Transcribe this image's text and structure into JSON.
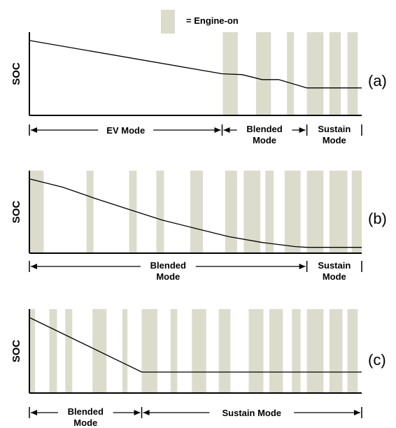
{
  "legend": {
    "label": "= Engine-on",
    "color": "#dcdccc"
  },
  "colors": {
    "band": "#dcdccc",
    "axis": "#000000",
    "curve": "#000000"
  },
  "panels": [
    {
      "tag": "(a)",
      "ylabel": "SOC",
      "bands": [
        [
          0.582,
          0.627
        ],
        [
          0.682,
          0.727
        ],
        [
          0.775,
          0.796
        ],
        [
          0.835,
          0.885
        ],
        [
          0.903,
          0.937
        ],
        [
          0.957,
          0.988
        ]
      ],
      "curve": [
        [
          0,
          0.9
        ],
        [
          0.58,
          0.5
        ],
        [
          0.64,
          0.49
        ],
        [
          0.7,
          0.43
        ],
        [
          0.75,
          0.43
        ],
        [
          0.835,
          0.33
        ],
        [
          1,
          0.33
        ]
      ],
      "modes": [
        {
          "label": "EV Mode",
          "start": 0,
          "end": 0.58
        },
        {
          "label": "Blended\nMode",
          "start": 0.58,
          "end": 0.835
        },
        {
          "label": "Sustain\nMode",
          "start": 0.835,
          "end": 1
        }
      ]
    },
    {
      "tag": "(b)",
      "ylabel": "SOC",
      "bands": [
        [
          0,
          0.043
        ],
        [
          0.172,
          0.193
        ],
        [
          0.3,
          0.323
        ],
        [
          0.382,
          0.405
        ],
        [
          0.484,
          0.522
        ],
        [
          0.589,
          0.625
        ],
        [
          0.645,
          0.695
        ],
        [
          0.71,
          0.735
        ],
        [
          0.768,
          0.816
        ],
        [
          0.835,
          0.885
        ],
        [
          0.903,
          0.957
        ],
        [
          0.97,
          1.0
        ]
      ],
      "curve": [
        [
          0,
          0.9
        ],
        [
          0.1,
          0.8
        ],
        [
          0.2,
          0.66
        ],
        [
          0.3,
          0.53
        ],
        [
          0.4,
          0.4
        ],
        [
          0.5,
          0.3
        ],
        [
          0.6,
          0.2
        ],
        [
          0.7,
          0.13
        ],
        [
          0.8,
          0.08
        ],
        [
          0.835,
          0.07
        ],
        [
          1,
          0.07
        ]
      ],
      "modes": [
        {
          "label": "Blended\nMode",
          "start": 0,
          "end": 0.835
        },
        {
          "label": "Sustain\nMode",
          "start": 0.835,
          "end": 1
        }
      ]
    },
    {
      "tag": "(c)",
      "ylabel": "SOC",
      "bands": [
        [
          0,
          0.017
        ],
        [
          0.06,
          0.083
        ],
        [
          0.108,
          0.129
        ],
        [
          0.19,
          0.232
        ],
        [
          0.28,
          0.295
        ],
        [
          0.338,
          0.385
        ],
        [
          0.425,
          0.445
        ],
        [
          0.489,
          0.532
        ],
        [
          0.57,
          0.605
        ],
        [
          0.66,
          0.704
        ],
        [
          0.722,
          0.763
        ],
        [
          0.79,
          0.816
        ],
        [
          0.835,
          0.885
        ],
        [
          0.903,
          0.942
        ],
        [
          0.957,
          0.988
        ]
      ],
      "curve": [
        [
          0,
          0.9
        ],
        [
          0.338,
          0.25
        ],
        [
          1,
          0.25
        ]
      ],
      "modes": [
        {
          "label": "Blended\nMode",
          "start": 0,
          "end": 0.338
        },
        {
          "label": "Sustain Mode",
          "start": 0.338,
          "end": 1
        }
      ]
    }
  ]
}
